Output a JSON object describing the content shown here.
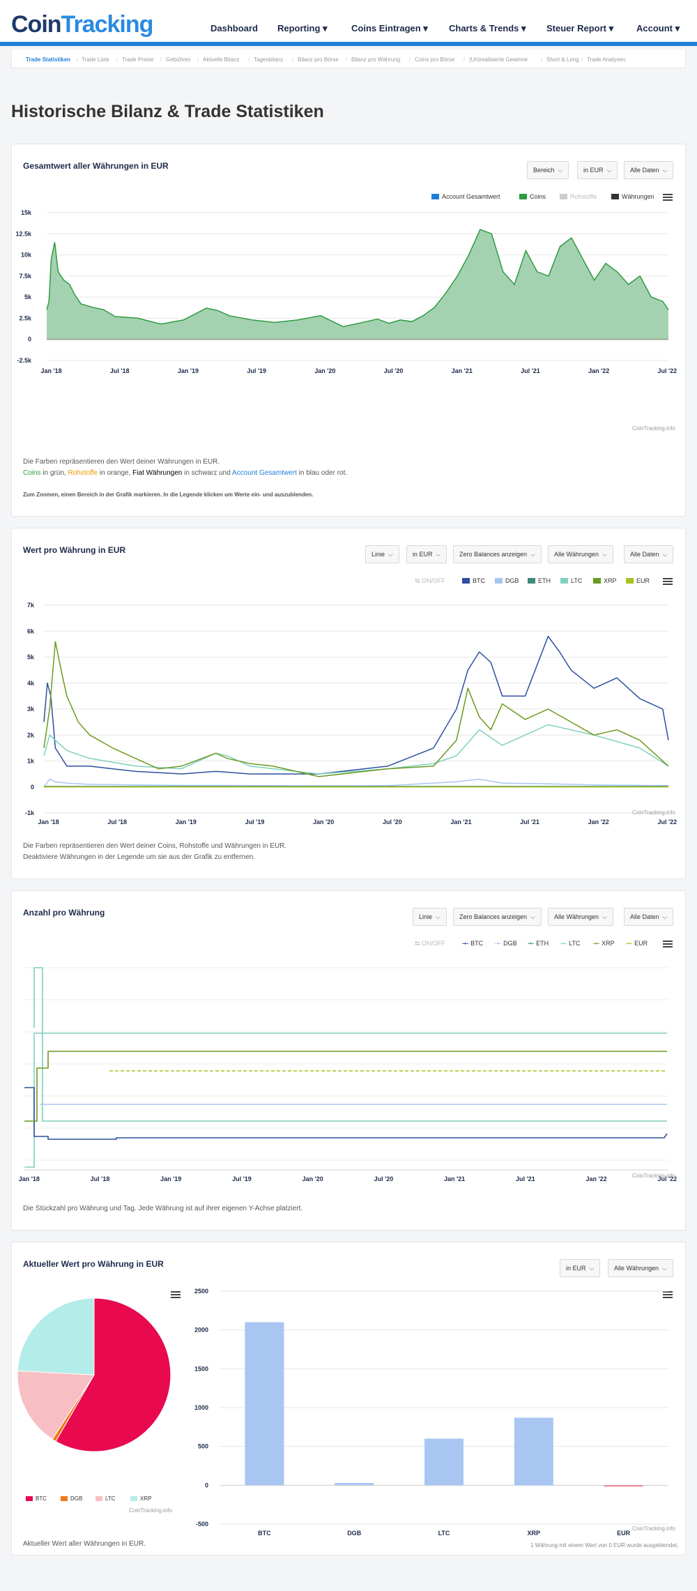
{
  "header": {
    "logo": {
      "part1": "Coin",
      "part2": "Tracking"
    },
    "nav": [
      "Dashboard",
      "Reporting ▾",
      "Coins Eintragen ▾",
      "Charts & Trends ▾",
      "Steuer Report ▾",
      "Account ▾"
    ]
  },
  "subnav": [
    "Trade Statistiken",
    "Trade Liste",
    "Trade Preise",
    "Gebühren",
    "Aktuelle Bilanz",
    "Tagesbilanz",
    "Bilanz pro Börse",
    "Bilanz pro Währung",
    "Coins pro Börse",
    "(Un)realisierte Gewinne",
    "Short & Long",
    "Trade Analysen"
  ],
  "page_title": "Historische Bilanz & Trade Statistiken",
  "card1": {
    "title": "Gesamtwert aller Währungen in EUR",
    "buttons": [
      "Bereich",
      "in EUR",
      "Alle Daten"
    ],
    "legend": [
      {
        "label": "Account Gesamtwert",
        "color": "#1e7fd8"
      },
      {
        "label": "Coins",
        "color": "#2e9b3e"
      },
      {
        "label": "Rohstoffe",
        "color": "#cccccc"
      },
      {
        "label": "Währungen",
        "color": "#333333"
      }
    ],
    "watermark": "CoinTracking.info",
    "note1": "Die Farben repräsentieren den Wert deiner Währungen in EUR.",
    "note2": {
      "coins": "Coins",
      "t1": " in grün, ",
      "roh": "Rohstoffe",
      "t2": " in orange, ",
      "fiat": "Fiat Währungen",
      "t3": " in schwarz und ",
      "acc": "Account Gesamtwert",
      "t4": " in blau oder rot."
    },
    "note3": "Zum Zoomen, einen Bereich in der Grafik markieren. In die Legende klicken um Werte ein- und auszublenden."
  },
  "card2": {
    "title": "Wert pro Währung in EUR",
    "buttons": [
      "Linie",
      "in EUR",
      "Zero Balances anzeigen",
      "Alle Währungen",
      "Alle Daten"
    ],
    "onoff": "ON/OFF",
    "watermark": "CoinTracking.info",
    "note1": "Die Farben repräsentieren den Wert deiner Coins, Rohstoffe und Währungen in EUR.",
    "note2": "Deaktiviere Währungen in der Legende um sie aus der Grafik zu entfernen."
  },
  "card3": {
    "title": "Anzahl pro Währung",
    "buttons": [
      "Linie",
      "Zero Balances anzeigen",
      "Alle Währungen",
      "Alle Daten"
    ],
    "onoff": "ON/OFF",
    "watermark": "CoinTracking.info",
    "note1": "Die Stückzahl pro Währung und Tag. Jede Währung ist auf ihrer eigenen Y-Achse platziert."
  },
  "card4": {
    "title": "Aktueller Wert pro Währung in EUR",
    "buttons": [
      "in EUR",
      "Alle Währungen"
    ],
    "watermark": "CoinTracking.info",
    "note1": "Aktueller Wert aller Währungen in EUR.",
    "note2": "1 Währung mit einem Wert von 0 EUR wurde ausgeblendet."
  },
  "chart_data": [
    {
      "type": "area",
      "title": "Gesamtwert aller Währungen in EUR",
      "x_ticks": [
        "Jan '18",
        "Jul '18",
        "Jan '19",
        "Jul '19",
        "Jan '20",
        "Jul '20",
        "Jan '21",
        "Jul '21",
        "Jan '22",
        "Jul '22"
      ],
      "y_ticks": [
        "15k",
        "12.5k",
        "10k",
        "7.5k",
        "5k",
        "2.5k",
        "0",
        "-2.5k"
      ],
      "ylim": [
        -2500,
        15000
      ],
      "series": [
        {
          "name": "Coins",
          "color": "#2e9b3e",
          "x": [
            0,
            0.2,
            0.4,
            0.7,
            1,
            1.5,
            2,
            2.5,
            3,
            4,
            5,
            6,
            8,
            10,
            12,
            14,
            15,
            16,
            18,
            20,
            22,
            24,
            26,
            28,
            29,
            30,
            31,
            32,
            33,
            34,
            35,
            36,
            37,
            38,
            39,
            40,
            41,
            42,
            43,
            44,
            45,
            46,
            47,
            48,
            49,
            50,
            51,
            52,
            53,
            54,
            54.5
          ],
          "y": [
            3500,
            4500,
            9500,
            11500,
            8000,
            7000,
            6500,
            5200,
            4200,
            3800,
            3500,
            2700,
            2500,
            1800,
            2300,
            3700,
            3400,
            2800,
            2300,
            2000,
            2300,
            2800,
            1500,
            2100,
            2400,
            1900,
            2300,
            2100,
            2800,
            3800,
            5500,
            7500,
            10000,
            13000,
            12500,
            8000,
            6500,
            10500,
            8000,
            7500,
            11000,
            12000,
            9500,
            7000,
            9000,
            8000,
            6500,
            7500,
            5000,
            4500,
            3500
          ]
        }
      ]
    },
    {
      "type": "line",
      "title": "Wert pro Währung in EUR",
      "x_ticks": [
        "Jan '18",
        "Jul '18",
        "Jan '19",
        "Jul '19",
        "Jan '20",
        "Jul '20",
        "Jan '21",
        "Jul '21",
        "Jan '22",
        "Jul '22"
      ],
      "y_ticks": [
        "7k",
        "6k",
        "5k",
        "4k",
        "3k",
        "2k",
        "1k",
        "0",
        "-1k"
      ],
      "ylim": [
        -1000,
        7000
      ],
      "series": [
        {
          "name": "BTC",
          "color": "#2c4f9e",
          "x": [
            0,
            0.3,
            0.6,
            1,
            2,
            4,
            6,
            8,
            12,
            15,
            18,
            24,
            30,
            34,
            36,
            37,
            38,
            39,
            40,
            42,
            44,
            45,
            46,
            48,
            50,
            52,
            54,
            54.5
          ],
          "y": [
            2500,
            4000,
            3500,
            1500,
            800,
            800,
            700,
            600,
            500,
            600,
            500,
            500,
            800,
            1500,
            3000,
            4500,
            5200,
            4800,
            3500,
            3500,
            5800,
            5200,
            4500,
            3800,
            4200,
            3400,
            3000,
            1800
          ]
        },
        {
          "name": "DGB",
          "color": "#a9c6f2",
          "x": [
            0,
            0.5,
            1,
            2,
            4,
            8,
            12,
            16,
            20,
            24,
            30,
            36,
            38,
            40,
            44,
            48,
            54.5
          ],
          "y": [
            0,
            300,
            200,
            150,
            100,
            80,
            60,
            60,
            50,
            40,
            50,
            200,
            300,
            150,
            120,
            80,
            50
          ]
        },
        {
          "name": "ETH",
          "color": "#3d8b78",
          "x": [
            0,
            54.5
          ],
          "y": [
            20,
            20
          ]
        },
        {
          "name": "LTC",
          "color": "#7ed0bf",
          "x": [
            0,
            0.5,
            1,
            2,
            4,
            8,
            12,
            15,
            16,
            18,
            24,
            30,
            34,
            36,
            38,
            40,
            44,
            48,
            52,
            54.5
          ],
          "y": [
            1200,
            2000,
            1800,
            1400,
            1100,
            800,
            700,
            1300,
            1200,
            800,
            500,
            700,
            900,
            1200,
            2200,
            1600,
            2400,
            2000,
            1500,
            800
          ]
        },
        {
          "name": "XRP",
          "color": "#6a9a1f",
          "x": [
            0,
            0.5,
            1,
            1.5,
            2,
            3,
            4,
            6,
            8,
            10,
            12,
            15,
            16,
            18,
            20,
            24,
            30,
            34,
            35,
            36,
            37,
            38,
            39,
            40,
            42,
            44,
            46,
            48,
            50,
            52,
            54.5
          ],
          "y": [
            1500,
            3000,
            5600,
            4500,
            3500,
            2500,
            2000,
            1500,
            1100,
            700,
            800,
            1300,
            1100,
            900,
            800,
            400,
            700,
            800,
            1300,
            1800,
            3800,
            2700,
            2200,
            3200,
            2600,
            3000,
            2500,
            2000,
            2200,
            1800,
            800
          ]
        },
        {
          "name": "EUR",
          "color": "#a7c21a",
          "x": [
            0,
            54.5
          ],
          "y": [
            0,
            0
          ]
        }
      ]
    },
    {
      "type": "line",
      "title": "Anzahl pro Währung",
      "x_ticks": [
        "Jan '18",
        "Jul '18",
        "Jan '19",
        "Jul '19",
        "Jan '20",
        "Jul '20",
        "Jan '21",
        "Jul '21",
        "Jan '22",
        "Jul '22"
      ],
      "series": [
        {
          "name": "BTC",
          "color": "#2c4f9e"
        },
        {
          "name": "DGB",
          "color": "#a9c6f2"
        },
        {
          "name": "ETH",
          "color": "#3d8b78"
        },
        {
          "name": "LTC",
          "color": "#7ed0bf"
        },
        {
          "name": "XRP",
          "color": "#6a9a1f"
        },
        {
          "name": "EUR",
          "color": "#a7c21a"
        }
      ]
    },
    {
      "type": "pie",
      "title": "Aktueller Wert pro Währung in EUR",
      "categories": [
        "BTC",
        "DGB",
        "LTC",
        "XRP"
      ],
      "values": [
        2100,
        30,
        600,
        870
      ],
      "colors": [
        "#e8094f",
        "#f07818",
        "#f7bfc3",
        "#b3ece8"
      ]
    },
    {
      "type": "bar",
      "categories": [
        "BTC",
        "DGB",
        "LTC",
        "XRP",
        "EUR"
      ],
      "values": [
        2100,
        30,
        600,
        870,
        -10
      ],
      "y_ticks": [
        "2500",
        "2000",
        "1500",
        "1000",
        "500",
        "0",
        "-500"
      ],
      "ylim": [
        -500,
        2500
      ],
      "colors": [
        "#a9c6f2",
        "#a9c6f2",
        "#a9c6f2",
        "#a9c6f2",
        "#f0868e"
      ]
    }
  ]
}
